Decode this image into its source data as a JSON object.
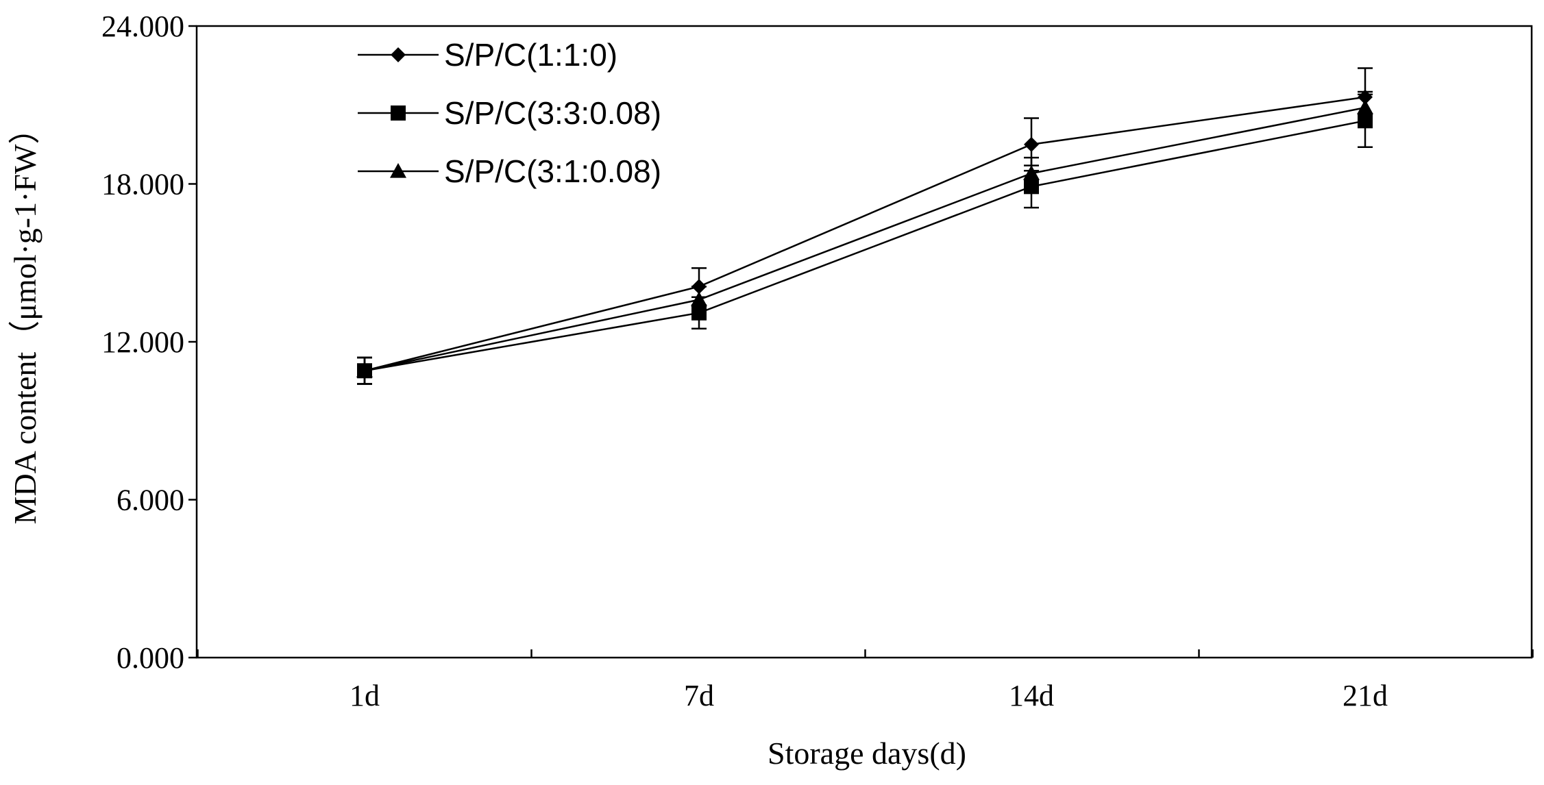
{
  "chart_data": {
    "type": "line",
    "title": "",
    "xlabel": "Storage days(d)",
    "ylabel": "MDA content（μmol·g-1·FW）",
    "categories": [
      "1d",
      "7d",
      "14d",
      "21d"
    ],
    "ylim": [
      0,
      24
    ],
    "yticks": [
      0,
      6,
      12,
      18,
      24
    ],
    "ytick_labels": [
      "0.000",
      "6.000",
      "12.000",
      "18.000",
      "24.000"
    ],
    "legend_position": "top-left",
    "series": [
      {
        "name": "S/P/C(1:1:0)",
        "marker": "diamond",
        "values": [
          10.9,
          14.1,
          19.5,
          21.3
        ],
        "errors": [
          0.5,
          0.7,
          1.0,
          1.1
        ]
      },
      {
        "name": "S/P/C(3:3:0.08)",
        "marker": "square",
        "values": [
          10.9,
          13.1,
          17.9,
          20.4
        ],
        "errors": [
          0.5,
          0.6,
          0.8,
          1.0
        ]
      },
      {
        "name": "S/P/C(3:1:0.08)",
        "marker": "triangle",
        "values": [
          10.9,
          13.6,
          18.4,
          20.9
        ],
        "errors": [
          0.5,
          0.5,
          0.6,
          0.6
        ]
      }
    ]
  }
}
